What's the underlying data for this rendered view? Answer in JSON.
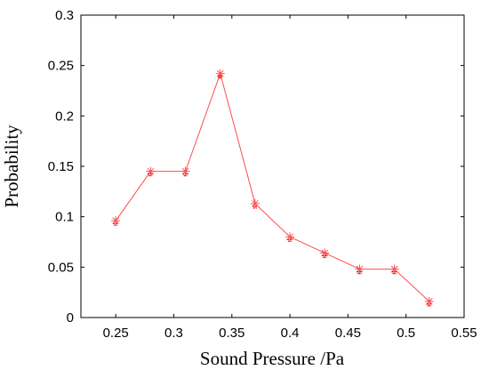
{
  "chart_data": {
    "type": "line",
    "xlabel": "Sound Pressure /Pa",
    "ylabel": "Probability",
    "xlim": [
      0.22,
      0.55
    ],
    "ylim": [
      0,
      0.3
    ],
    "xticks": [
      0.25,
      0.3,
      0.35,
      0.4,
      0.45,
      0.5,
      0.55
    ],
    "xtick_labels": [
      "0.25",
      "0.3",
      "0.35",
      "0.4",
      "0.45",
      "0.5",
      "0.55"
    ],
    "yticks": [
      0,
      0.05,
      0.1,
      0.15,
      0.2,
      0.25,
      0.3
    ],
    "ytick_labels": [
      "0",
      "0.05",
      "0.1",
      "0.15",
      "0.2",
      "0.25",
      "0.3"
    ],
    "grid": false,
    "series": [
      {
        "x": [
          0.25,
          0.28,
          0.31,
          0.34,
          0.37,
          0.4,
          0.43,
          0.46,
          0.49,
          0.52
        ],
        "y": [
          0.096,
          0.145,
          0.145,
          0.242,
          0.113,
          0.08,
          0.064,
          0.048,
          0.048,
          0.016
        ],
        "color": "#ff4d4d",
        "marker": "asterisk"
      }
    ]
  }
}
